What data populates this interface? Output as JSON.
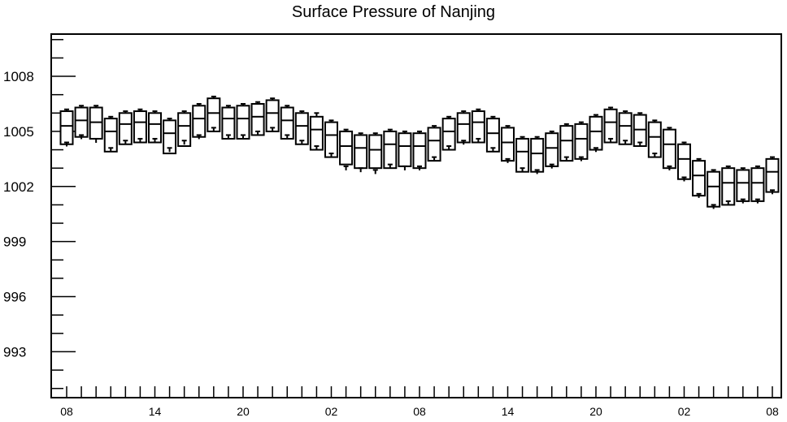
{
  "chart_data": {
    "type": "box",
    "title": "Surface Pressure of Nanjing",
    "xlabel": "",
    "ylabel": "",
    "ylim": [
      990.5,
      1010.3
    ],
    "y_ticks": [
      993,
      996,
      999,
      1002,
      1005,
      1008
    ],
    "x_tick_labels": [
      "08",
      "14",
      "20",
      "02",
      "08",
      "14",
      "20",
      "02",
      "08"
    ],
    "x_tick_label_steps": [
      0,
      6,
      12,
      18,
      24,
      30,
      36,
      42,
      48
    ],
    "grid": false,
    "series": [
      {
        "x": [
          0,
          1,
          2,
          3,
          4,
          5,
          6,
          7,
          8,
          9,
          10,
          11,
          12,
          13,
          14,
          15,
          16,
          17,
          18,
          19,
          20,
          21,
          22,
          23,
          24,
          25,
          26,
          27,
          28,
          29,
          30,
          31,
          32,
          33,
          34,
          35,
          36,
          37,
          38,
          39,
          40,
          41,
          42,
          43,
          44,
          45,
          46,
          47,
          48
        ],
        "min": [
          1004.4,
          1004.8,
          1004.6,
          1004.1,
          1004.5,
          1004.6,
          1004.6,
          1004.1,
          1004.5,
          1004.8,
          1005.2,
          1004.8,
          1004.8,
          1005.0,
          1005.2,
          1004.8,
          1004.5,
          1004.2,
          1003.8,
          1003.1,
          1003.0,
          1002.9,
          1003.2,
          1003.1,
          1003.1,
          1003.6,
          1004.2,
          1004.5,
          1004.6,
          1004.1,
          1003.5,
          1003.0,
          1002.9,
          1003.2,
          1003.6,
          1003.6,
          1004.1,
          1004.6,
          1004.5,
          1004.4,
          1003.8,
          1003.1,
          1002.5,
          1001.6,
          1001.0,
          1001.2,
          1001.3,
          1001.3,
          1001.8
        ],
        "q1": [
          1004.3,
          1004.7,
          1004.6,
          1003.9,
          1004.3,
          1004.4,
          1004.4,
          1003.8,
          1004.2,
          1004.7,
          1005.0,
          1004.6,
          1004.6,
          1004.8,
          1005.0,
          1004.6,
          1004.3,
          1004.0,
          1003.6,
          1003.2,
          1003.0,
          1003.0,
          1003.0,
          1003.1,
          1003.0,
          1003.4,
          1004.0,
          1004.4,
          1004.4,
          1003.9,
          1003.4,
          1002.8,
          1002.8,
          1003.1,
          1003.4,
          1003.5,
          1004.0,
          1004.4,
          1004.3,
          1004.2,
          1003.6,
          1003.0,
          1002.4,
          1001.5,
          1000.9,
          1001.0,
          1001.2,
          1001.2,
          1001.7
        ],
        "median": [
          1005.3,
          1005.6,
          1005.5,
          1005.0,
          1005.4,
          1005.5,
          1005.4,
          1004.9,
          1005.3,
          1005.7,
          1006.0,
          1005.7,
          1005.7,
          1005.8,
          1006.0,
          1005.6,
          1005.3,
          1005.1,
          1004.8,
          1004.2,
          1004.1,
          1004.0,
          1004.3,
          1004.2,
          1004.2,
          1004.5,
          1005.0,
          1005.4,
          1005.5,
          1004.9,
          1004.4,
          1003.9,
          1003.8,
          1004.1,
          1004.5,
          1004.6,
          1005.0,
          1005.5,
          1005.3,
          1005.1,
          1004.7,
          1004.3,
          1003.5,
          1002.6,
          1002.0,
          1002.2,
          1002.2,
          1002.2,
          1002.8
        ],
        "q3": [
          1006.1,
          1006.3,
          1006.3,
          1005.7,
          1006.0,
          1006.1,
          1006.0,
          1005.6,
          1006.0,
          1006.4,
          1006.8,
          1006.3,
          1006.4,
          1006.5,
          1006.7,
          1006.3,
          1006.0,
          1005.8,
          1005.5,
          1005.0,
          1004.8,
          1004.8,
          1005.0,
          1004.9,
          1004.9,
          1005.2,
          1005.7,
          1006.0,
          1006.1,
          1005.7,
          1005.2,
          1004.6,
          1004.6,
          1004.9,
          1005.3,
          1005.4,
          1005.8,
          1006.2,
          1006.0,
          1005.9,
          1005.5,
          1005.1,
          1004.3,
          1003.4,
          1002.8,
          1003.0,
          1002.9,
          1003.0,
          1003.5
        ],
        "max": [
          1006.2,
          1006.4,
          1006.4,
          1005.8,
          1006.1,
          1006.2,
          1006.1,
          1005.7,
          1006.1,
          1006.5,
          1006.9,
          1006.4,
          1006.5,
          1006.6,
          1006.8,
          1006.4,
          1006.1,
          1006.0,
          1005.6,
          1005.1,
          1004.9,
          1004.9,
          1005.1,
          1005.0,
          1005.0,
          1005.3,
          1005.8,
          1006.1,
          1006.2,
          1005.8,
          1005.3,
          1004.7,
          1004.7,
          1005.0,
          1005.4,
          1005.5,
          1005.9,
          1006.3,
          1006.1,
          1006.0,
          1005.6,
          1005.2,
          1004.4,
          1003.5,
          1002.9,
          1003.1,
          1003.0,
          1003.1,
          1003.6
        ]
      }
    ]
  }
}
